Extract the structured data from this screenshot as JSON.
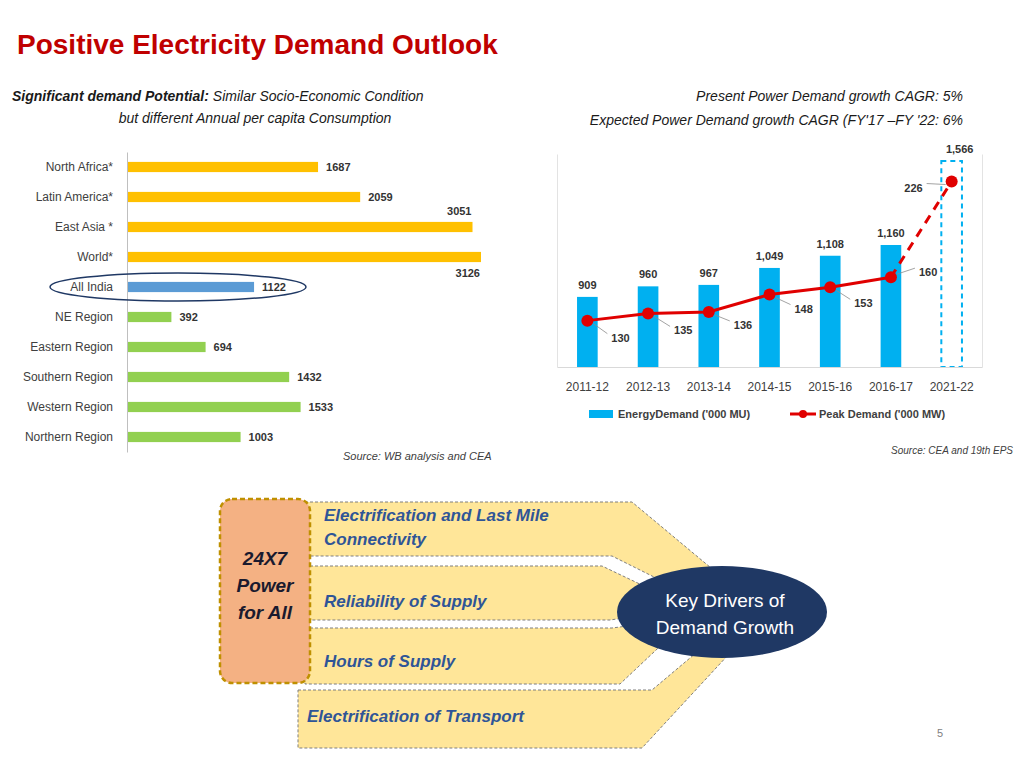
{
  "title": "Positive Electricity Demand Outlook",
  "chart_data": [
    {
      "type": "bar",
      "orientation": "horizontal",
      "title": "Significant demand Potential:",
      "subtitle": [
        "Similar Socio-Economic Condition",
        "but different  Annual per capita Consumption"
      ],
      "categories": [
        "North Africa*",
        "Latin America*",
        "East Asia *",
        "World*",
        "All India",
        "NE Region",
        "Eastern Region",
        "Southern Region",
        "Western Region",
        "Northern Region"
      ],
      "values": [
        1687,
        2059,
        3051,
        3126,
        1122,
        392,
        694,
        1432,
        1533,
        1003
      ],
      "colors": [
        "#FFC000",
        "#FFC000",
        "#FFC000",
        "#FFC000",
        "#5B9BD5",
        "#92D050",
        "#92D050",
        "#92D050",
        "#92D050",
        "#92D050"
      ],
      "xlim": [
        0,
        3126
      ],
      "data_labels": true,
      "tick_labels": "y",
      "source": "Source: WB analysis and CEA"
    },
    {
      "type": "bar",
      "title": "Present Power Demand growth CAGR: 5%",
      "subtitle": "Expected Power Demand growth CAGR (FY'17 –FY '22: 6%",
      "categories": [
        "2011-12",
        "2012-13",
        "2013-14",
        "2014-15",
        "2015-16",
        "2016-17",
        "2021-22"
      ],
      "series": [
        {
          "name": "EnergyDemand ('000 MU)",
          "type": "bar",
          "color": "#00B0F0",
          "colors": [
            "#00B0F0",
            "#00B0F0",
            "#00B0F0",
            "#00B0F0",
            "#00B0F0",
            "#00B0F0",
            "none"
          ],
          "values": [
            909,
            960,
            967,
            1049,
            1108,
            1160,
            1566
          ],
          "value_labels": [
            "909",
            "960",
            "967",
            "1,049",
            "1,108",
            "1,160",
            "1,566"
          ]
        },
        {
          "name": "Peak Demand ('000 MW)",
          "type": "line",
          "color": "#E00000",
          "marker": "circle",
          "axis": "y2",
          "values": [
            130,
            135,
            136,
            148,
            153,
            160,
            226
          ]
        }
      ],
      "ylim": [
        570,
        1600
      ],
      "y2lim": [
        98,
        245
      ],
      "data_labels": true,
      "tick_labels": "x",
      "legend": "bottom",
      "source": "Source: CEA and 19th EPS"
    }
  ],
  "diagram": {
    "center": [
      "24X7",
      "Power",
      "for All"
    ],
    "drivers": [
      [
        "Electrification and Last Mile",
        "Connectivity"
      ],
      [
        "Reliability of Supply"
      ],
      [
        "Hours of Supply"
      ],
      [
        "Electrification of Transport"
      ]
    ],
    "hub": [
      "Key Drivers of",
      "Demand Growth"
    ]
  },
  "page": "5"
}
